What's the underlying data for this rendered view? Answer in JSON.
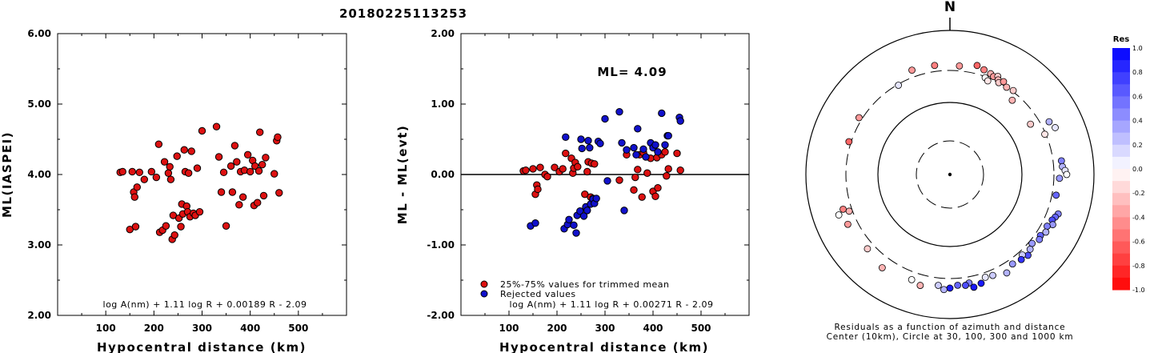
{
  "page_title": "20180225113253",
  "colors": {
    "accepted": "#dd1111",
    "rejected": "#1111cc",
    "residual_positive": "#0000ff",
    "residual_negative": "#ff0000"
  },
  "chart_data": [
    {
      "type": "scatter",
      "xlabel": "Hypocentral distance (km)",
      "ylabel": "ML(IASPEI)",
      "xlim": [
        0,
        600
      ],
      "ylim": [
        2.0,
        6.0
      ],
      "xticks": [
        100,
        200,
        300,
        400,
        500
      ],
      "yticks": [
        "2.00",
        "3.00",
        "4.00",
        "5.00",
        "6.00"
      ],
      "formula": "log A(nm) + 1.11 log R + 0.00189 R - 2.09",
      "series": [
        {
          "color": "#dd1111",
          "points": [
            [
              130,
              4.03
            ],
            [
              135,
              4.04
            ],
            [
              150,
              3.22
            ],
            [
              155,
              4.04
            ],
            [
              158,
              3.75
            ],
            [
              160,
              3.68
            ],
            [
              162,
              3.26
            ],
            [
              165,
              3.82
            ],
            [
              170,
              4.03
            ],
            [
              180,
              3.93
            ],
            [
              195,
              4.04
            ],
            [
              205,
              3.96
            ],
            [
              210,
              4.43
            ],
            [
              212,
              3.18
            ],
            [
              218,
              3.21
            ],
            [
              222,
              4.18
            ],
            [
              225,
              3.27
            ],
            [
              230,
              4.02
            ],
            [
              233,
              4.11
            ],
            [
              235,
              3.93
            ],
            [
              238,
              3.08
            ],
            [
              240,
              3.42
            ],
            [
              243,
              3.14
            ],
            [
              248,
              4.26
            ],
            [
              252,
              3.38
            ],
            [
              256,
              3.26
            ],
            [
              258,
              3.58
            ],
            [
              260,
              3.44
            ],
            [
              263,
              4.35
            ],
            [
              265,
              4.04
            ],
            [
              268,
              3.55
            ],
            [
              270,
              3.47
            ],
            [
              272,
              4.02
            ],
            [
              275,
              3.4
            ],
            [
              278,
              4.33
            ],
            [
              282,
              3.45
            ],
            [
              286,
              3.42
            ],
            [
              290,
              4.09
            ],
            [
              295,
              3.47
            ],
            [
              300,
              4.62
            ],
            [
              330,
              4.68
            ],
            [
              335,
              4.25
            ],
            [
              340,
              3.75
            ],
            [
              345,
              4.03
            ],
            [
              350,
              3.27
            ],
            [
              360,
              4.12
            ],
            [
              363,
              3.75
            ],
            [
              368,
              4.41
            ],
            [
              372,
              4.18
            ],
            [
              377,
              3.57
            ],
            [
              380,
              4.04
            ],
            [
              385,
              3.68
            ],
            [
              388,
              4.06
            ],
            [
              395,
              4.28
            ],
            [
              400,
              4.04
            ],
            [
              405,
              4.2
            ],
            [
              408,
              3.56
            ],
            [
              410,
              4.12
            ],
            [
              415,
              3.6
            ],
            [
              418,
              4.05
            ],
            [
              420,
              4.6
            ],
            [
              425,
              4.14
            ],
            [
              428,
              3.7
            ],
            [
              432,
              4.24
            ],
            [
              450,
              4.01
            ],
            [
              455,
              4.48
            ],
            [
              457,
              4.53
            ],
            [
              460,
              3.74
            ]
          ]
        }
      ]
    },
    {
      "type": "scatter",
      "xlabel": "Hypocentral distance (km)",
      "ylabel": "ML - ML(evt)",
      "xlim": [
        0,
        600
      ],
      "ylim": [
        -2.0,
        2.0
      ],
      "xticks": [
        100,
        200,
        300,
        400,
        500
      ],
      "yticks": [
        "-2.00",
        "-1.00",
        "0.00",
        "1.00",
        "2.00"
      ],
      "reference_line": 0.0,
      "annotation": "ML= 4.09",
      "formula": "log A(nm) + 1.11 log R + 0.00271 R - 2.09",
      "series": [
        {
          "name": "25%-75% values for trimmed mean",
          "color": "#dd1111",
          "points": [
            [
              130,
              0.05
            ],
            [
              135,
              0.06
            ],
            [
              150,
              0.08
            ],
            [
              155,
              -0.28
            ],
            [
              158,
              -0.15
            ],
            [
              160,
              -0.21
            ],
            [
              165,
              0.1
            ],
            [
              175,
              0.0
            ],
            [
              180,
              -0.03
            ],
            [
              195,
              0.1
            ],
            [
              205,
              0.04
            ],
            [
              212,
              0.08
            ],
            [
              218,
              0.3
            ],
            [
              230,
              0.23
            ],
            [
              233,
              0.02
            ],
            [
              235,
              0.09
            ],
            [
              238,
              0.17
            ],
            [
              243,
              0.11
            ],
            [
              258,
              -0.28
            ],
            [
              263,
              0.04
            ],
            [
              265,
              0.18
            ],
            [
              270,
              -0.32
            ],
            [
              272,
              0.16
            ],
            [
              275,
              -0.34
            ],
            [
              278,
              0.15
            ],
            [
              330,
              -0.08
            ],
            [
              345,
              0.28
            ],
            [
              360,
              -0.22
            ],
            [
              363,
              -0.04
            ],
            [
              368,
              0.07
            ],
            [
              372,
              0.28
            ],
            [
              377,
              -0.32
            ],
            [
              380,
              0.31
            ],
            [
              388,
              0.02
            ],
            [
              395,
              0.23
            ],
            [
              400,
              -0.24
            ],
            [
              405,
              -0.31
            ],
            [
              408,
              0.24
            ],
            [
              410,
              -0.19
            ],
            [
              418,
              0.28
            ],
            [
              425,
              0.32
            ],
            [
              428,
              -0.02
            ],
            [
              432,
              0.08
            ],
            [
              450,
              0.3
            ],
            [
              457,
              0.06
            ]
          ]
        },
        {
          "name": "Rejected values",
          "color": "#1111cc",
          "points": [
            [
              145,
              -0.73
            ],
            [
              155,
              -0.69
            ],
            [
              215,
              -0.77
            ],
            [
              218,
              0.53
            ],
            [
              222,
              -0.71
            ],
            [
              225,
              -0.64
            ],
            [
              235,
              -0.72
            ],
            [
              240,
              -0.83
            ],
            [
              242,
              -0.58
            ],
            [
              248,
              -0.52
            ],
            [
              250,
              0.5
            ],
            [
              252,
              0.37
            ],
            [
              256,
              -0.59
            ],
            [
              260,
              -0.46
            ],
            [
              263,
              -0.51
            ],
            [
              265,
              0.48
            ],
            [
              268,
              0.38
            ],
            [
              270,
              -0.42
            ],
            [
              275,
              -0.35
            ],
            [
              278,
              -0.41
            ],
            [
              282,
              -0.34
            ],
            [
              286,
              0.47
            ],
            [
              290,
              0.44
            ],
            [
              300,
              0.79
            ],
            [
              305,
              -0.09
            ],
            [
              330,
              0.89
            ],
            [
              335,
              0.45
            ],
            [
              340,
              -0.51
            ],
            [
              345,
              0.35
            ],
            [
              360,
              0.38
            ],
            [
              365,
              0.28
            ],
            [
              368,
              0.65
            ],
            [
              380,
              0.36
            ],
            [
              385,
              0.25
            ],
            [
              395,
              0.45
            ],
            [
              400,
              0.38
            ],
            [
              405,
              0.42
            ],
            [
              410,
              0.32
            ],
            [
              418,
              0.87
            ],
            [
              425,
              0.42
            ],
            [
              430,
              0.55
            ],
            [
              432,
              0.55
            ],
            [
              455,
              0.81
            ],
            [
              457,
              0.76
            ]
          ]
        }
      ]
    }
  ],
  "polar": {
    "north_label": "N",
    "caption_line1": "Residuals as a function of azimuth and distance",
    "caption_line2": "Center (10km), Circle at 30, 100, 300 and 1000 km",
    "rings_km": [
      30,
      100,
      300,
      1000
    ],
    "residual_points": [
      {
        "azimuth": 340,
        "distance": 370,
        "res": -0.4
      },
      {
        "azimuth": 352,
        "distance": 360,
        "res": -0.5
      },
      {
        "azimuth": 5,
        "distance": 348,
        "res": -0.4
      },
      {
        "azimuth": 14,
        "distance": 385,
        "res": -0.6
      },
      {
        "azimuth": 18,
        "distance": 360,
        "res": -0.5
      },
      {
        "azimuth": 22,
        "distance": 345,
        "res": -0.3
      },
      {
        "azimuth": 24,
        "distance": 330,
        "res": -0.4
      },
      {
        "azimuth": 26,
        "distance": 350,
        "res": -0.2
      },
      {
        "azimuth": 27,
        "distance": 320,
        "res": -0.3
      },
      {
        "azimuth": 28,
        "distance": 300,
        "res": -0.2
      },
      {
        "azimuth": 30,
        "distance": 330,
        "res": -0.4
      },
      {
        "azimuth": 33,
        "distance": 300,
        "res": -0.3
      },
      {
        "azimuth": 20,
        "distance": 290,
        "res": 0.0
      },
      {
        "azimuth": 22,
        "distance": 270,
        "res": -0.1
      },
      {
        "azimuth": 37,
        "distance": 310,
        "res": -0.2
      },
      {
        "azimuth": 40,
        "distance": 235,
        "res": -0.3
      },
      {
        "azimuth": 330,
        "distance": 290,
        "res": 0.1
      },
      {
        "azimuth": 302,
        "distance": 330,
        "res": -0.4
      },
      {
        "azimuth": 288,
        "distance": 320,
        "res": -0.6
      },
      {
        "azimuth": 58,
        "distance": 220,
        "res": -0.2
      },
      {
        "azimuth": 62,
        "distance": 385,
        "res": 0.3
      },
      {
        "azimuth": 66,
        "distance": 420,
        "res": 0.1
      },
      {
        "azimuth": 67,
        "distance": 290,
        "res": -0.1
      },
      {
        "azimuth": 83,
        "distance": 385,
        "res": 0.5
      },
      {
        "azimuth": 86,
        "distance": 390,
        "res": 0.3
      },
      {
        "azimuth": 88,
        "distance": 420,
        "res": 0.1
      },
      {
        "azimuth": 90,
        "distance": 440,
        "res": 0.0
      },
      {
        "azimuth": 92,
        "distance": 355,
        "res": 0.4
      },
      {
        "azimuth": 101,
        "distance": 340,
        "res": 0.6
      },
      {
        "azimuth": 110,
        "distance": 420,
        "res": 0.5
      },
      {
        "azimuth": 112,
        "distance": 400,
        "res": 0.6
      },
      {
        "azimuth": 114,
        "distance": 380,
        "res": 0.7
      },
      {
        "azimuth": 116,
        "distance": 410,
        "res": 0.4
      },
      {
        "azimuth": 118,
        "distance": 360,
        "res": 0.5
      },
      {
        "azimuth": 121,
        "distance": 380,
        "res": 0.3
      },
      {
        "azimuth": 124,
        "distance": 350,
        "res": 0.6
      },
      {
        "azimuth": 126,
        "distance": 365,
        "res": 0.5
      },
      {
        "azimuth": 130,
        "distance": 330,
        "res": 0.4
      },
      {
        "azimuth": 133,
        "distance": 355,
        "res": 0.3
      },
      {
        "azimuth": 136,
        "distance": 385,
        "res": 0.7
      },
      {
        "azimuth": 138,
        "distance": 340,
        "res": 0.2
      },
      {
        "azimuth": 140,
        "distance": 370,
        "res": 0.8
      },
      {
        "azimuth": 145,
        "distance": 350,
        "res": 0.4
      },
      {
        "azimuth": 150,
        "distance": 400,
        "res": 0.3
      },
      {
        "azimuth": 157,
        "distance": 355,
        "res": 0.2
      },
      {
        "azimuth": 161,
        "distance": 345,
        "res": 0.1
      },
      {
        "azimuth": 164,
        "distance": 395,
        "res": 0.9
      },
      {
        "azimuth": 168,
        "distance": 420,
        "res": 0.9
      },
      {
        "azimuth": 170,
        "distance": 360,
        "res": 0.5
      },
      {
        "azimuth": 172,
        "distance": 380,
        "res": 0.7
      },
      {
        "azimuth": 176,
        "distance": 370,
        "res": 0.6
      },
      {
        "azimuth": 180,
        "distance": 400,
        "res": 0.9
      },
      {
        "azimuth": 183,
        "distance": 420,
        "res": 0.3
      },
      {
        "azimuth": 186,
        "distance": 375,
        "res": 0.2
      },
      {
        "azimuth": 195,
        "distance": 415,
        "res": -0.3
      },
      {
        "azimuth": 200,
        "distance": 380,
        "res": 0.0
      },
      {
        "azimuth": 216,
        "distance": 420,
        "res": -0.3
      },
      {
        "azimuth": 228,
        "distance": 370,
        "res": -0.2
      },
      {
        "azimuth": 244,
        "distance": 400,
        "res": -0.4
      },
      {
        "azimuth": 250,
        "distance": 460,
        "res": 0.0
      },
      {
        "azimuth": 252,
        "distance": 385,
        "res": -0.5
      },
      {
        "azimuth": 250,
        "distance": 330,
        "res": -0.3
      }
    ]
  },
  "colorbar": {
    "title": "Res",
    "ticks": [
      "1.0",
      "0.8",
      "0.6",
      "0.4",
      "0.2",
      "0.0",
      "-0.2",
      "-0.4",
      "-0.6",
      "-0.8",
      "-1.0"
    ]
  }
}
